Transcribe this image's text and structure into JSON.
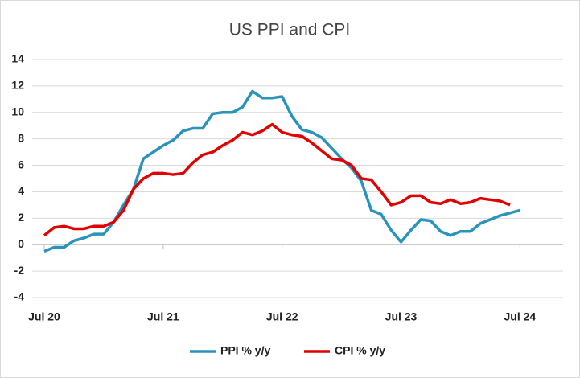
{
  "chart_data": {
    "type": "line",
    "title": "US PPI and CPI",
    "categories": [
      "Jul 20",
      null,
      null,
      null,
      null,
      null,
      null,
      null,
      null,
      null,
      null,
      null,
      "Jul 21",
      null,
      null,
      null,
      null,
      null,
      null,
      null,
      null,
      null,
      null,
      null,
      "Jul 22",
      null,
      null,
      null,
      null,
      null,
      null,
      null,
      null,
      null,
      null,
      null,
      "Jul 23",
      null,
      null,
      null,
      null,
      null,
      null,
      null,
      null,
      null,
      null,
      null,
      "Jul 24"
    ],
    "series": [
      {
        "name": "PPI % y/y",
        "color": "#2a93bc",
        "values": [
          -0.5,
          -0.2,
          -0.2,
          0.3,
          0.5,
          0.8,
          0.8,
          1.7,
          3.0,
          4.2,
          6.5,
          7.0,
          7.5,
          7.9,
          8.6,
          8.8,
          8.8,
          9.9,
          10.0,
          10.0,
          10.4,
          11.6,
          11.1,
          11.1,
          11.2,
          9.7,
          8.7,
          8.5,
          8.1,
          7.3,
          6.5,
          5.8,
          4.8,
          2.6,
          2.3,
          1.1,
          0.2,
          1.1,
          1.9,
          1.8,
          1.0,
          0.7,
          1.0,
          1.0,
          1.6,
          1.9,
          2.2,
          2.4,
          2.6
        ]
      },
      {
        "name": "CPI % y/y",
        "color": "#e00000",
        "values": [
          0.7,
          1.3,
          1.4,
          1.2,
          1.2,
          1.4,
          1.4,
          1.7,
          2.6,
          4.2,
          5.0,
          5.4,
          5.4,
          5.3,
          5.4,
          6.2,
          6.8,
          7.0,
          7.5,
          7.9,
          8.5,
          8.3,
          8.6,
          9.1,
          8.5,
          8.3,
          8.2,
          7.7,
          7.1,
          6.5,
          6.4,
          6.0,
          5.0,
          4.9,
          4.0,
          3.0,
          3.2,
          3.7,
          3.7,
          3.2,
          3.1,
          3.4,
          3.1,
          3.2,
          3.5,
          3.4,
          3.3,
          3.0,
          null
        ]
      }
    ],
    "ylim": [
      -4,
      14
    ],
    "yticks": [
      -4,
      -2,
      0,
      2,
      4,
      6,
      8,
      10,
      12,
      14
    ],
    "grid": true,
    "legend": "bottom"
  }
}
